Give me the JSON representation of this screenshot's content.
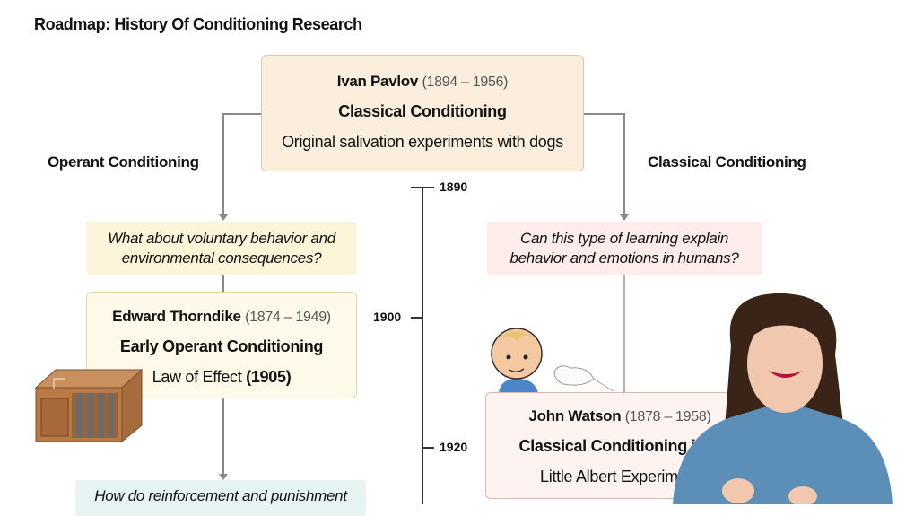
{
  "title": "Roadmap: History Of Conditioning Research",
  "root": {
    "name": "Ivan Pavlov",
    "dates": "(1894 – 1956)",
    "topic": "Classical Conditioning",
    "note": "Original salivation experiments with dogs"
  },
  "branches": {
    "left": "Operant Conditioning",
    "right": "Classical Conditioning"
  },
  "timeline": {
    "years": [
      "1890",
      "1900",
      "1920"
    ]
  },
  "left": {
    "question": [
      "What about voluntary behavior and",
      "environmental consequences?"
    ],
    "card": {
      "name": "Edward Thorndike",
      "dates": "(1874 – 1949)",
      "topic": "Early Operant Conditioning",
      "note": "Law of Effect",
      "note_year": "(1905)"
    },
    "next_question": "How do reinforcement and punishment"
  },
  "right": {
    "question": [
      "Can this type of learning explain",
      "behavior and emotions in humans?"
    ],
    "card": {
      "name": "John Watson",
      "dates": "(1878 – 1958)",
      "topic": "Classical Conditioning in H",
      "note": "Little Albert Experiment"
    }
  },
  "colors": {
    "root_bg": "#fbeedd",
    "operant_question": "#fdf5d9",
    "classical_question": "#fdecea",
    "teal_question": "#e8f3f3",
    "presenter_shirt": "#5b8fb8"
  }
}
